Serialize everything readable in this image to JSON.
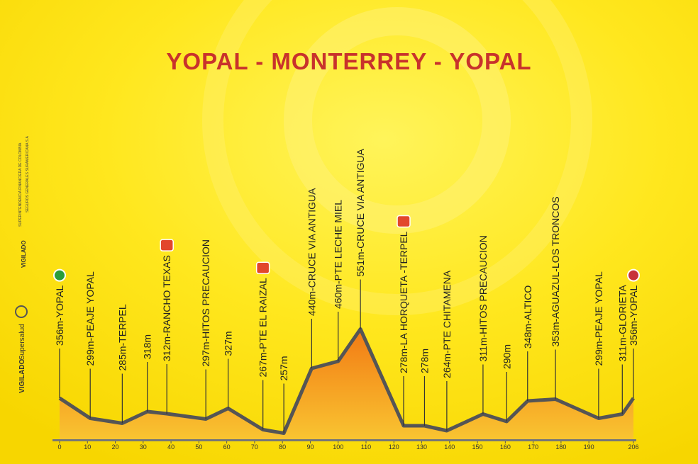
{
  "chart_data": {
    "type": "area",
    "title": "YOPAL - MONTERREY  - YOPAL",
    "x": [
      0,
      11,
      22.5,
      31.5,
      38.5,
      52.5,
      60.5,
      73,
      80.5,
      90.5,
      100,
      108,
      123.5,
      131,
      139,
      152,
      160.5,
      168,
      178,
      193.5,
      202,
      206
    ],
    "values": [
      356,
      299,
      285,
      318,
      312,
      297,
      327,
      267,
      257,
      440,
      460,
      551,
      278,
      278,
      264,
      311,
      290,
      348,
      353,
      299,
      311,
      356
    ],
    "labels": [
      "356m-YOPAL",
      "299m-PEAJE YOPAL",
      "285m-TERPEL",
      "318m",
      "312m-RANCHO TEXAS",
      "297m-HITOS PRECAUCION",
      "327m",
      "267m-PTE EL RAIZAL",
      "257m",
      "440m-CRUCE VIA ANTIGUA",
      "460m-PTE LECHE MIEL",
      "551m-CRUCE VIA ANTIGUA",
      "278m-LA HORQUETA -TERPEL",
      "278m",
      "264m-PTE CHITAMENA",
      "311m-HITOS PRECAUCION",
      "290m",
      "348m-ALTICO",
      "353m-AGUAZUL-LOS TRONCOS",
      "299m-PEAJE YOPAL",
      "311m-GLORIETA",
      "356m-YOPAL"
    ],
    "xlim": [
      0,
      206
    ],
    "xticks": [
      0,
      10,
      20,
      30,
      40,
      50,
      60,
      70,
      80,
      90,
      100,
      110,
      120,
      130,
      140,
      150,
      160,
      170,
      180,
      190,
      206
    ],
    "ylim": [
      240,
      600
    ],
    "color": "#f5901a",
    "side_texts": [
      "SUPERINTENDENCIA FINANCIERA DE COLOMBIA",
      "SEGUROS GENERALES SURAMERICANA S.A",
      "VIGILADO",
      "VIGILADO",
      "Supersalud"
    ]
  }
}
